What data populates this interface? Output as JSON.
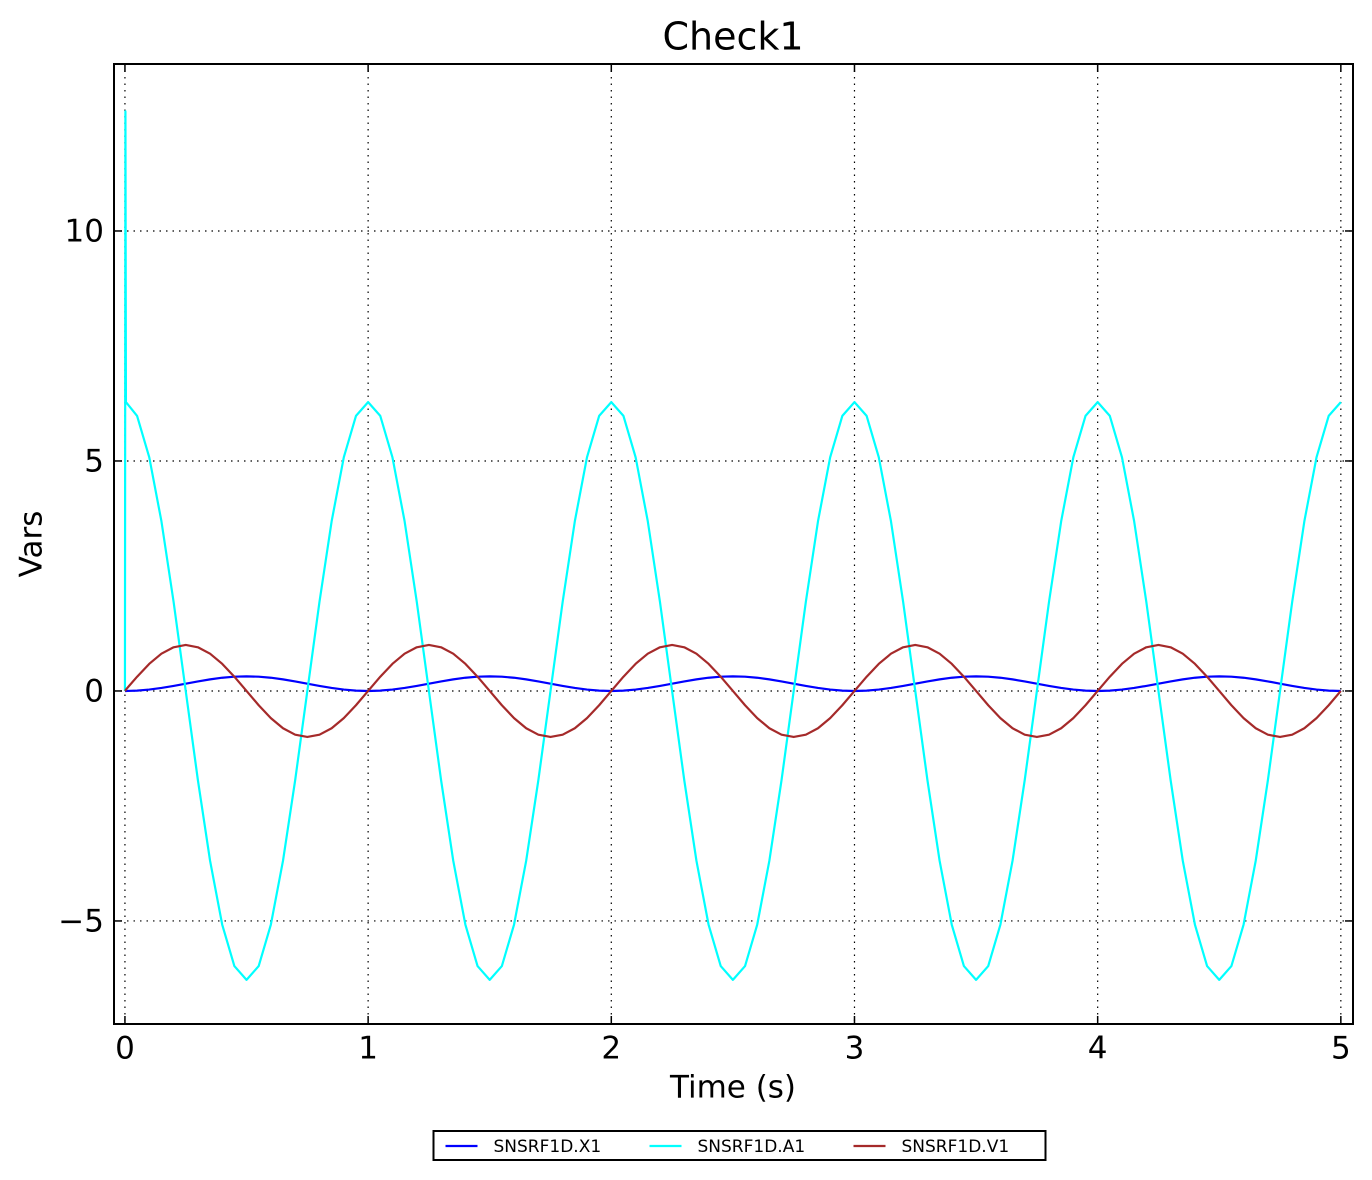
{
  "chart_data": {
    "type": "line",
    "title": "Check1",
    "x_label": "Time (s)",
    "y_label": "Vars",
    "xlim": [
      -0.045,
      5.05
    ],
    "ylim": [
      -7.24,
      13.63
    ],
    "xticks": [
      0,
      1,
      2,
      3,
      4,
      5
    ],
    "yticks": [
      {
        "value": -5,
        "label": "−5"
      },
      0,
      5,
      10
    ],
    "grid": true,
    "legend": "lower center",
    "x": [
      0,
      0.002,
      0.004,
      0.05,
      0.1,
      0.15,
      0.2,
      0.25,
      0.3,
      0.35,
      0.4,
      0.45,
      0.5,
      0.55,
      0.6,
      0.65,
      0.7,
      0.75,
      0.8,
      0.85,
      0.9,
      0.95,
      1,
      1.05,
      1.1,
      1.15,
      1.2,
      1.25,
      1.3,
      1.35,
      1.4,
      1.45,
      1.5,
      1.55,
      1.6,
      1.65,
      1.7,
      1.75,
      1.8,
      1.85,
      1.9,
      1.95,
      2,
      2.05,
      2.1,
      2.15,
      2.2,
      2.25,
      2.3,
      2.35,
      2.4,
      2.45,
      2.5,
      2.55,
      2.6,
      2.65,
      2.7,
      2.75,
      2.8,
      2.85,
      2.9,
      2.95,
      3,
      3.05,
      3.1,
      3.15,
      3.2,
      3.25,
      3.3,
      3.35,
      3.4,
      3.45,
      3.5,
      3.55,
      3.6,
      3.65,
      3.7,
      3.75,
      3.8,
      3.85,
      3.9,
      3.95,
      4,
      4.05,
      4.1,
      4.15,
      4.2,
      4.25,
      4.3,
      4.35,
      4.4,
      4.45,
      4.5,
      4.55,
      4.6,
      4.65,
      4.7,
      4.75,
      4.8,
      4.85,
      4.9,
      4.95,
      5
    ],
    "series": [
      {
        "name": "SNSRF1D.X1",
        "color": "#0000ff",
        "values": [
          0,
          0,
          0,
          0.008,
          0.03,
          0.066,
          0.11,
          0.159,
          0.208,
          0.252,
          0.288,
          0.31,
          0.318,
          0.31,
          0.288,
          0.252,
          0.208,
          0.159,
          0.11,
          0.066,
          0.03,
          0.008,
          0,
          0.008,
          0.03,
          0.066,
          0.11,
          0.159,
          0.208,
          0.252,
          0.288,
          0.31,
          0.318,
          0.31,
          0.288,
          0.252,
          0.208,
          0.159,
          0.11,
          0.066,
          0.03,
          0.008,
          0,
          0.008,
          0.03,
          0.066,
          0.11,
          0.159,
          0.208,
          0.252,
          0.288,
          0.31,
          0.318,
          0.31,
          0.288,
          0.252,
          0.208,
          0.159,
          0.11,
          0.066,
          0.03,
          0.008,
          0,
          0.008,
          0.03,
          0.066,
          0.11,
          0.159,
          0.208,
          0.252,
          0.288,
          0.31,
          0.318,
          0.31,
          0.288,
          0.252,
          0.208,
          0.159,
          0.11,
          0.066,
          0.03,
          0.008,
          0,
          0.008,
          0.03,
          0.066,
          0.11,
          0.159,
          0.208,
          0.252,
          0.288,
          0.31,
          0.318,
          0.31,
          0.288,
          0.252,
          0.208,
          0.159,
          0.11,
          0.066,
          0.03,
          0.008,
          0
        ]
      },
      {
        "name": "SNSRF1D.A1",
        "color": "#00ffff",
        "values": [
          0,
          12.6,
          6.28,
          5.98,
          5.08,
          3.69,
          1.94,
          0,
          -1.94,
          -3.69,
          -5.08,
          -5.98,
          -6.28,
          -5.98,
          -5.08,
          -3.69,
          -1.94,
          0,
          1.94,
          3.69,
          5.08,
          5.98,
          6.28,
          5.98,
          5.08,
          3.69,
          1.94,
          0,
          -1.94,
          -3.69,
          -5.08,
          -5.98,
          -6.28,
          -5.98,
          -5.08,
          -3.69,
          -1.94,
          0,
          1.94,
          3.69,
          5.08,
          5.98,
          6.28,
          5.98,
          5.08,
          3.69,
          1.94,
          0,
          -1.94,
          -3.69,
          -5.08,
          -5.98,
          -6.28,
          -5.98,
          -5.08,
          -3.69,
          -1.94,
          0,
          1.94,
          3.69,
          5.08,
          5.98,
          6.28,
          5.98,
          5.08,
          3.69,
          1.94,
          0,
          -1.94,
          -3.69,
          -5.08,
          -5.98,
          -6.28,
          -5.98,
          -5.08,
          -3.69,
          -1.94,
          0,
          1.94,
          3.69,
          5.08,
          5.98,
          6.28,
          5.98,
          5.08,
          3.69,
          1.94,
          0,
          -1.94,
          -3.69,
          -5.08,
          -5.98,
          -6.28,
          -5.98,
          -5.08,
          -3.69,
          -1.94,
          0,
          1.94,
          3.69,
          5.08,
          5.98,
          6.28
        ]
      },
      {
        "name": "SNSRF1D.V1",
        "color": "#a52a2a",
        "values": [
          0,
          0.01,
          0.03,
          0.31,
          0.59,
          0.81,
          0.95,
          1,
          0.95,
          0.81,
          0.59,
          0.31,
          0,
          -0.31,
          -0.59,
          -0.81,
          -0.95,
          -1,
          -0.95,
          -0.81,
          -0.59,
          -0.31,
          0,
          0.31,
          0.59,
          0.81,
          0.95,
          1,
          0.95,
          0.81,
          0.59,
          0.31,
          0,
          -0.31,
          -0.59,
          -0.81,
          -0.95,
          -1,
          -0.95,
          -0.81,
          -0.59,
          -0.31,
          0,
          0.31,
          0.59,
          0.81,
          0.95,
          1,
          0.95,
          0.81,
          0.59,
          0.31,
          0,
          -0.31,
          -0.59,
          -0.81,
          -0.95,
          -1,
          -0.95,
          -0.81,
          -0.59,
          -0.31,
          0,
          0.31,
          0.59,
          0.81,
          0.95,
          1,
          0.95,
          0.81,
          0.59,
          0.31,
          0,
          -0.31,
          -0.59,
          -0.81,
          -0.95,
          -1,
          -0.95,
          -0.81,
          -0.59,
          -0.31,
          0,
          0.31,
          0.59,
          0.81,
          0.95,
          1,
          0.95,
          0.81,
          0.59,
          0.31,
          0,
          -0.31,
          -0.59,
          -0.81,
          -0.95,
          -1,
          -0.95,
          -0.81,
          -0.59,
          -0.31,
          0
        ]
      }
    ]
  }
}
